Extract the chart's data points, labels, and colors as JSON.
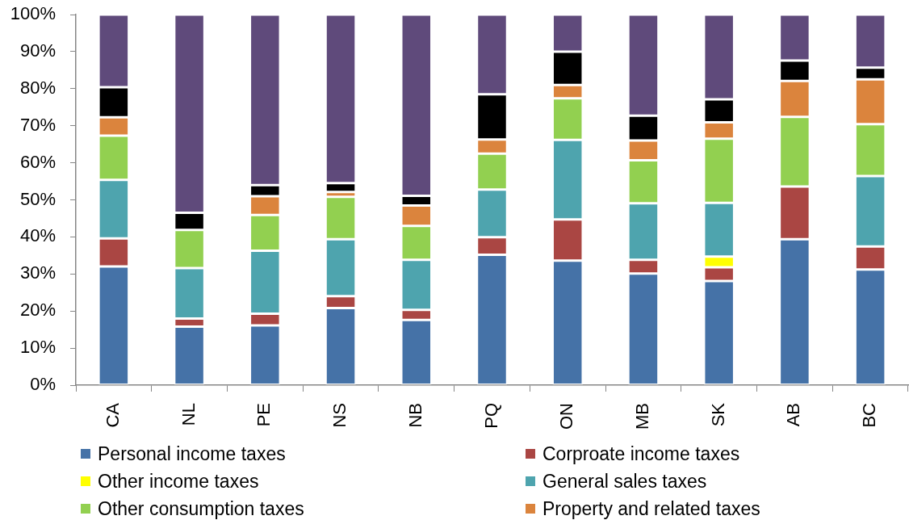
{
  "chart_data": {
    "type": "bar",
    "stacked": true,
    "legend": "bottom",
    "categories": [
      "CA",
      "NL",
      "PE",
      "NS",
      "NB",
      "PQ",
      "ON",
      "MB",
      "SK",
      "AB",
      "BC"
    ],
    "ylim": [
      0,
      100
    ],
    "yticks": [
      {
        "value": 0,
        "label": "0%"
      },
      {
        "value": 10,
        "label": "10%"
      },
      {
        "value": 20,
        "label": "20%"
      },
      {
        "value": 30,
        "label": "30%"
      },
      {
        "value": 40,
        "label": "40%"
      },
      {
        "value": 50,
        "label": "50%"
      },
      {
        "value": 60,
        "label": "60%"
      },
      {
        "value": 70,
        "label": "70%"
      },
      {
        "value": 80,
        "label": "80%"
      },
      {
        "value": 90,
        "label": "90%"
      },
      {
        "value": 100,
        "label": "100%"
      }
    ],
    "series": [
      {
        "name": "Personal income taxes",
        "color": "#4572a7",
        "values": [
          32.0,
          15.8,
          16.1,
          20.8,
          17.6,
          35.2,
          33.6,
          30.1,
          28.1,
          39.4,
          31.2
        ]
      },
      {
        "name": "Corproate income taxes",
        "color": "#aa4643",
        "values": [
          7.6,
          2.2,
          3.2,
          3.2,
          2.7,
          4.7,
          11.1,
          3.7,
          3.7,
          14.2,
          6.2
        ]
      },
      {
        "name": "Other income taxes",
        "color": "#ffff00",
        "values": [
          0,
          0,
          0,
          0,
          0,
          0,
          0,
          0,
          2.9,
          0,
          0
        ]
      },
      {
        "name": "General sales taxes",
        "color": "#4ea4ae",
        "values": [
          15.8,
          13.6,
          17.0,
          15.4,
          13.5,
          12.9,
          21.5,
          15.3,
          14.5,
          0,
          19.0
        ]
      },
      {
        "name": "Other consumption taxes",
        "color": "#92d050",
        "values": [
          11.9,
          10.3,
          9.6,
          11.4,
          9.2,
          9.7,
          11.2,
          11.6,
          17.3,
          18.8,
          14.0
        ]
      },
      {
        "name": "Property and related taxes",
        "color": "#db843d",
        "values": [
          5.0,
          0,
          5.1,
          1.3,
          5.5,
          3.8,
          3.6,
          5.3,
          4.4,
          9.7,
          12.1
        ]
      },
      {
        "color": "#000000",
        "values": [
          8.1,
          4.6,
          3.0,
          2.4,
          2.6,
          12.2,
          9.0,
          6.7,
          6.2,
          5.5,
          3.2
        ]
      },
      {
        "color": "#5f4a7b",
        "values": [
          19.6,
          53.5,
          46.0,
          45.5,
          48.9,
          21.5,
          10.0,
          27.3,
          22.9,
          12.4,
          14.3
        ]
      }
    ]
  }
}
